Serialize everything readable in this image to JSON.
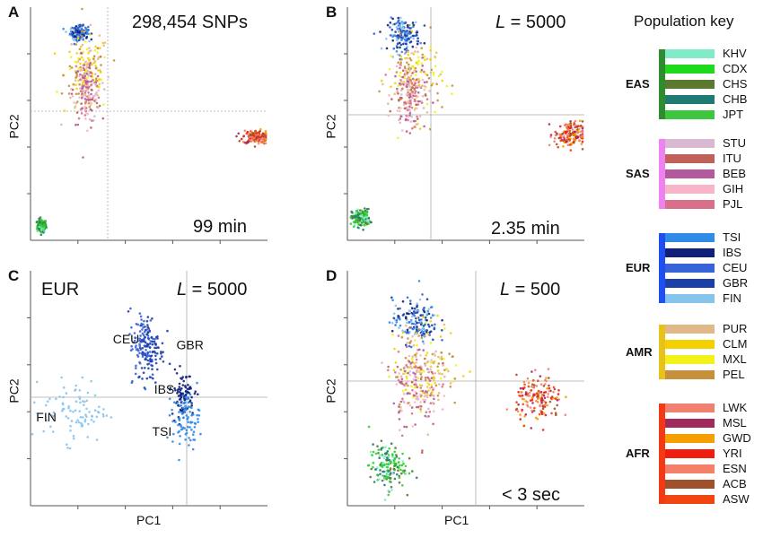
{
  "figure": {
    "panel_a": {
      "letter": "A",
      "snps": "298,454 SNPs",
      "time": "99 min",
      "ylabel": "PC2"
    },
    "panel_b": {
      "letter": "B",
      "l_italic": "L",
      "l_value": " = 5000",
      "time": "2.35 min",
      "ylabel": "PC2"
    },
    "panel_c": {
      "letter": "C",
      "region": "EUR",
      "l_italic": "L",
      "l_value": " = 5000",
      "ylabel": "PC2",
      "xlabel": "PC1"
    },
    "panel_d": {
      "letter": "D",
      "l_italic": "L",
      "l_value": " = 500",
      "time": "< 3 sec",
      "ylabel": "PC2",
      "xlabel": "PC1"
    }
  },
  "key": {
    "title": "Population key",
    "groups": [
      {
        "name": "EAS",
        "color": "#2e8b2e",
        "pops": [
          {
            "code": "KHV",
            "color": "#80ebc8"
          },
          {
            "code": "CDX",
            "color": "#1ed91e"
          },
          {
            "code": "CHS",
            "color": "#5c7a2e"
          },
          {
            "code": "CHB",
            "color": "#1f7a73"
          },
          {
            "code": "JPT",
            "color": "#3ec73e"
          }
        ]
      },
      {
        "name": "SAS",
        "color": "#ee82ee",
        "pops": [
          {
            "code": "STU",
            "color": "#d9b8d1"
          },
          {
            "code": "ITU",
            "color": "#c0605a"
          },
          {
            "code": "BEB",
            "color": "#b35a9e"
          },
          {
            "code": "GIH",
            "color": "#f7b6c8"
          },
          {
            "code": "PJL",
            "color": "#d9708a"
          }
        ]
      },
      {
        "name": "EUR",
        "color": "#1f4ff0",
        "pops": [
          {
            "code": "TSI",
            "color": "#2f8ae8"
          },
          {
            "code": "IBS",
            "color": "#10207a"
          },
          {
            "code": "CEU",
            "color": "#3763d8"
          },
          {
            "code": "GBR",
            "color": "#1d3fa8"
          },
          {
            "code": "FIN",
            "color": "#86c4ee"
          }
        ]
      },
      {
        "name": "AMR",
        "color": "#e6c21a",
        "pops": [
          {
            "code": "PUR",
            "color": "#e0b98a"
          },
          {
            "code": "CLM",
            "color": "#f5d000"
          },
          {
            "code": "MXL",
            "color": "#f2f21a"
          },
          {
            "code": "PEL",
            "color": "#c8903a"
          }
        ]
      },
      {
        "name": "AFR",
        "color": "#f23a14",
        "pops": [
          {
            "code": "LWK",
            "color": "#f08070"
          },
          {
            "code": "MSL",
            "color": "#a02a5a"
          },
          {
            "code": "GWD",
            "color": "#f5a000"
          },
          {
            "code": "YRI",
            "color": "#f01e10"
          },
          {
            "code": "ESN",
            "color": "#f5806a"
          },
          {
            "code": "ACB",
            "color": "#a0502a"
          },
          {
            "code": "ASW",
            "color": "#f04510"
          }
        ]
      }
    ]
  },
  "chart_data": [
    {
      "panel": "A",
      "type": "scatter",
      "xlabel": "",
      "ylabel": "PC2",
      "grid": "crosshair at origin",
      "annotations": [
        "298,454 SNPs",
        "99 min"
      ],
      "clusters": [
        {
          "group": "EAS",
          "pc1": -0.95,
          "pc2": -0.92,
          "spread": [
            0.02,
            0.03
          ]
        },
        {
          "group": "EUR",
          "pc1": -0.62,
          "pc2": 0.82,
          "spread": [
            0.04,
            0.03
          ]
        },
        {
          "group": "AMR",
          "pc1": -0.55,
          "pc2": 0.45,
          "spread": [
            0.1,
            0.18
          ]
        },
        {
          "group": "SAS",
          "pc1": -0.55,
          "pc2": 0.3,
          "spread": [
            0.06,
            0.15
          ]
        },
        {
          "group": "AFR",
          "pc1": 0.95,
          "pc2": -0.12,
          "spread": [
            0.06,
            0.03
          ]
        }
      ]
    },
    {
      "panel": "B",
      "type": "scatter",
      "xlabel": "",
      "ylabel": "PC2",
      "grid": "crosshair at origin",
      "annotations": [
        "L = 5000",
        "2.35 min"
      ],
      "clusters": [
        {
          "group": "EAS",
          "pc1": -0.93,
          "pc2": -0.85,
          "spread": [
            0.04,
            0.04
          ]
        },
        {
          "group": "EUR",
          "pc1": -0.55,
          "pc2": 0.8,
          "spread": [
            0.07,
            0.07
          ]
        },
        {
          "group": "AMR",
          "pc1": -0.45,
          "pc2": 0.4,
          "spread": [
            0.12,
            0.18
          ]
        },
        {
          "group": "SAS",
          "pc1": -0.5,
          "pc2": 0.25,
          "spread": [
            0.07,
            0.15
          ]
        },
        {
          "group": "AFR",
          "pc1": 0.92,
          "pc2": -0.1,
          "spread": [
            0.07,
            0.06
          ]
        }
      ]
    },
    {
      "panel": "C",
      "type": "scatter",
      "xlabel": "PC1",
      "ylabel": "PC2",
      "grid": "crosshair at origin",
      "annotations": [
        "EUR",
        "L = 5000"
      ],
      "clusters": [
        {
          "pop": "FIN",
          "pc1": -0.65,
          "pc2": -0.2,
          "spread": [
            0.14,
            0.14
          ]
        },
        {
          "pop": "CEU",
          "pc1": -0.05,
          "pc2": 0.4,
          "spread": [
            0.06,
            0.16
          ]
        },
        {
          "pop": "GBR",
          "pc1": 0.02,
          "pc2": 0.35,
          "spread": [
            0.06,
            0.16
          ]
        },
        {
          "pop": "IBS",
          "pc1": 0.3,
          "pc2": -0.05,
          "spread": [
            0.05,
            0.1
          ]
        },
        {
          "pop": "TSI",
          "pc1": 0.33,
          "pc2": -0.28,
          "spread": [
            0.06,
            0.12
          ]
        }
      ]
    },
    {
      "panel": "D",
      "type": "scatter",
      "xlabel": "PC1",
      "ylabel": "PC2",
      "grid": "crosshair at origin",
      "annotations": [
        "L = 500",
        "< 3 sec"
      ],
      "clusters": [
        {
          "group": "EAS",
          "pc1": -0.7,
          "pc2": -0.7,
          "spread": [
            0.08,
            0.1
          ]
        },
        {
          "group": "EUR",
          "pc1": -0.45,
          "pc2": 0.6,
          "spread": [
            0.1,
            0.1
          ]
        },
        {
          "group": "AMR",
          "pc1": -0.35,
          "pc2": 0.2,
          "spread": [
            0.15,
            0.2
          ]
        },
        {
          "group": "SAS",
          "pc1": -0.45,
          "pc2": 0.05,
          "spread": [
            0.1,
            0.2
          ]
        },
        {
          "group": "AFR",
          "pc1": 0.65,
          "pc2": -0.1,
          "spread": [
            0.1,
            0.1
          ]
        }
      ]
    }
  ]
}
